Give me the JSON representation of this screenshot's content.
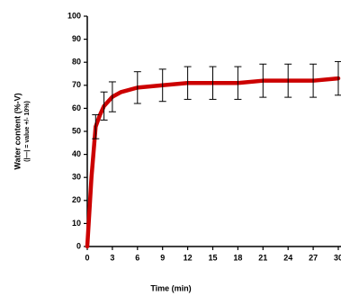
{
  "chart_data": {
    "type": "line",
    "xlabel": "Time (min)",
    "ylabel": "Water content (%-V)",
    "ylabel2": "(|—| = value +/- 10%)",
    "x": [
      0,
      0.5,
      1,
      1.5,
      2,
      3,
      4,
      6,
      9,
      12,
      15,
      18,
      21,
      24,
      27,
      30
    ],
    "series": [
      {
        "color": "#cc0000",
        "values": [
          0,
          30,
          52,
          57,
          61,
          65,
          67,
          69,
          70,
          71,
          71,
          71,
          72,
          72,
          72,
          73
        ],
        "errors": [
          null,
          null,
          5.2,
          null,
          6.1,
          6.5,
          null,
          6.9,
          7,
          7.1,
          7.1,
          7.1,
          7.2,
          7.2,
          7.2,
          7.3
        ]
      }
    ],
    "xlim": [
      0,
      30
    ],
    "ylim": [
      0,
      100
    ],
    "xticks": [
      0,
      3,
      6,
      9,
      12,
      15,
      18,
      21,
      24,
      27,
      30
    ],
    "yticks": [
      0,
      10,
      20,
      30,
      40,
      50,
      60,
      70,
      80,
      90,
      100
    ]
  }
}
